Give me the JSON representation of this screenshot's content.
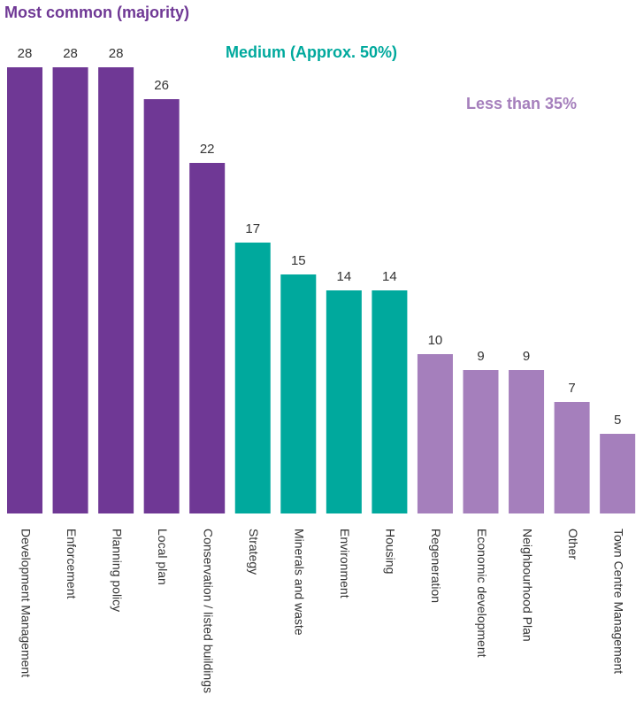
{
  "chart_data": {
    "type": "bar",
    "annotations": [
      {
        "text": "Most common (majority)",
        "color": "#6f3895"
      },
      {
        "text": "Medium (Approx. 50%)",
        "color": "#00a99d"
      },
      {
        "text": "Less than 35%",
        "color": "#a57fbc"
      }
    ],
    "categories": [
      "Development Management",
      "Enforcement",
      "Planning policy",
      "Local plan",
      "Conservation / listed buildings",
      "Strategy",
      "Minerals and waste",
      "Environment",
      "Housing",
      "Regeneration",
      "Economic development",
      "Neighbourhood Plan",
      "Other",
      "Town Centre Management"
    ],
    "values": [
      28,
      28,
      28,
      26,
      22,
      17,
      15,
      14,
      14,
      10,
      9,
      9,
      7,
      5
    ],
    "colors": [
      "#6f3895",
      "#6f3895",
      "#6f3895",
      "#6f3895",
      "#6f3895",
      "#00a99d",
      "#00a99d",
      "#00a99d",
      "#00a99d",
      "#a57fbc",
      "#a57fbc",
      "#a57fbc",
      "#a57fbc",
      "#a57fbc"
    ],
    "ylim": [
      0,
      28
    ]
  }
}
